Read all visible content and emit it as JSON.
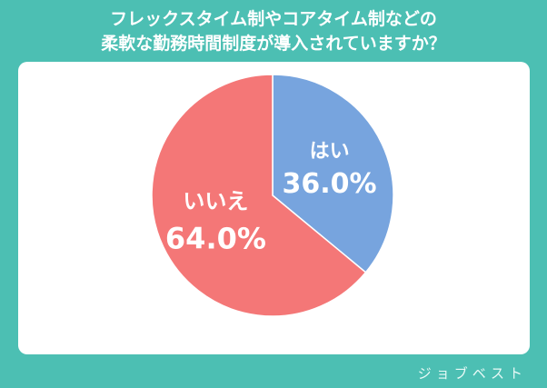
{
  "chart_data": {
    "type": "pie",
    "title": "フレックスタイム制やコアタイム制などの\n柔軟な勤務時間制度が導入されていますか？",
    "categories": [
      "はい",
      "いいえ"
    ],
    "values": [
      36.0,
      64.0
    ],
    "value_labels": [
      "36.0%",
      "64.0%"
    ],
    "colors": [
      "#77a4de",
      "#f47777"
    ],
    "start_angle": -90,
    "direction": "clockwise"
  },
  "footer": {
    "brand": "ジョブベスト"
  }
}
